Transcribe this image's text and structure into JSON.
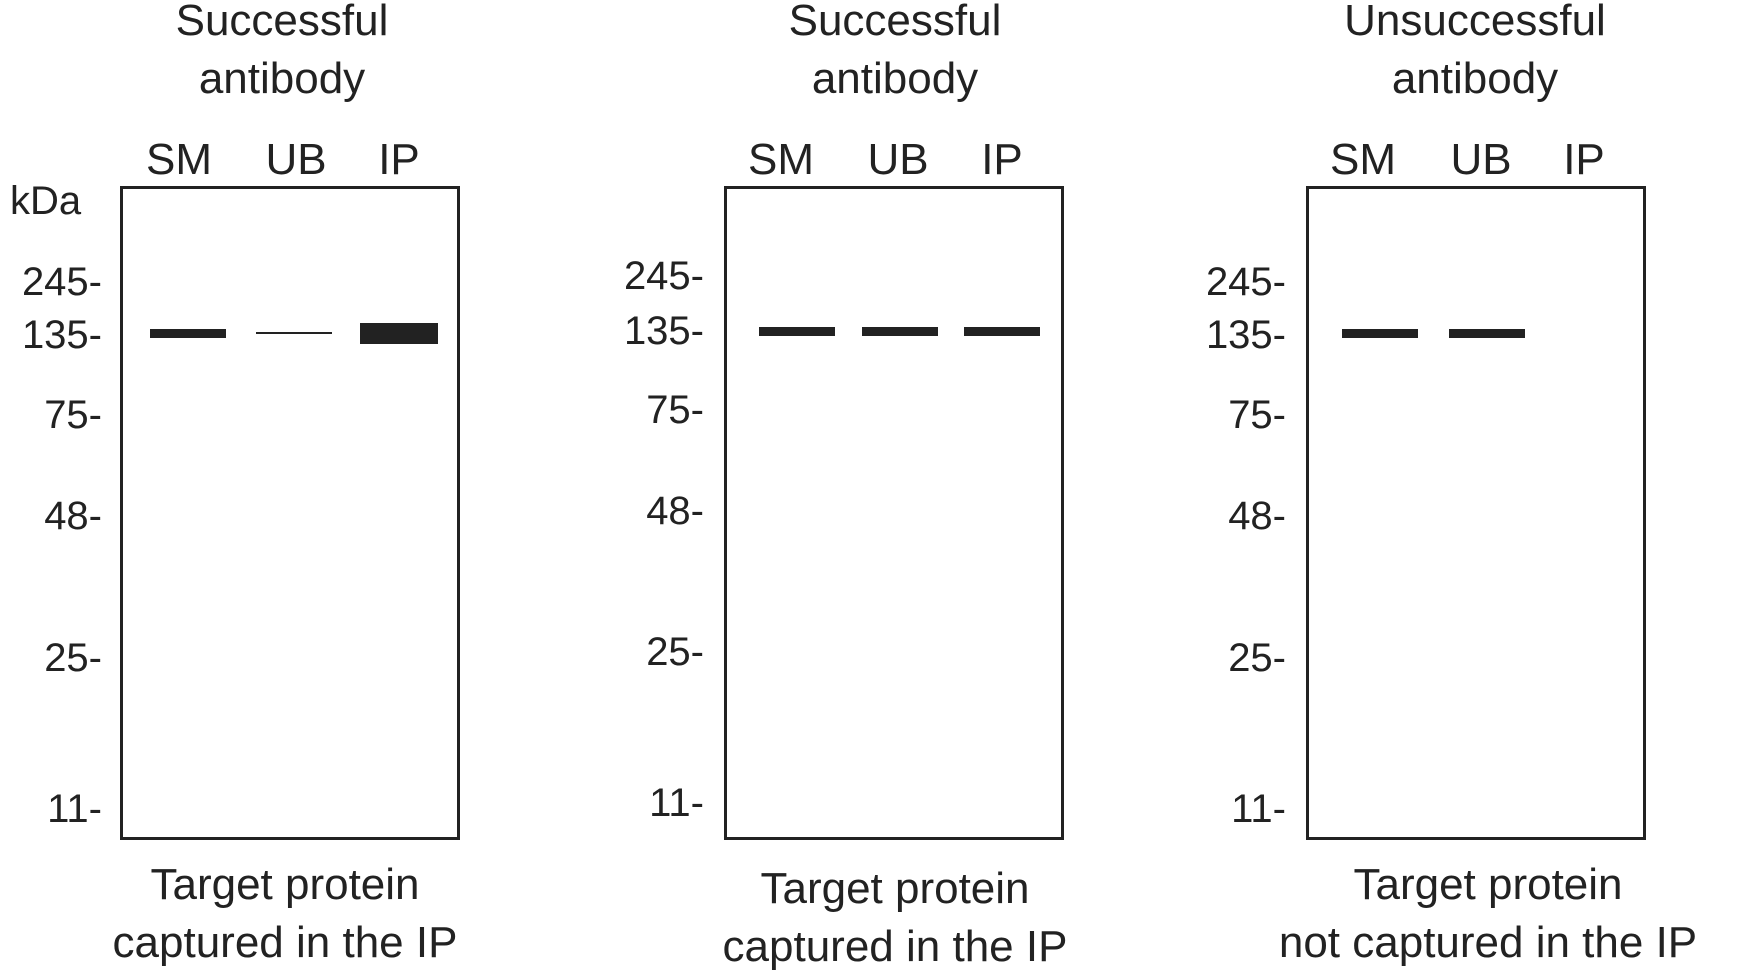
{
  "unit_label": "kDa",
  "lanes": [
    "SM",
    "UB",
    "IP"
  ],
  "panels": [
    {
      "title": "Successful\nantibody",
      "markers": [
        "245-",
        "135-",
        "75-",
        "48-",
        "25-",
        "11-"
      ],
      "caption": "Target protein\ncaptured in the IP",
      "bands": [
        {
          "lane": "SM",
          "marker": "135",
          "intensity": "medium"
        },
        {
          "lane": "UB",
          "marker": "135",
          "intensity": "faint"
        },
        {
          "lane": "IP",
          "marker": "135",
          "intensity": "strong"
        }
      ]
    },
    {
      "title": "Successful\nantibody",
      "markers": [
        "245-",
        "135-",
        "75-",
        "48-",
        "25-",
        "11-"
      ],
      "caption": "Target protein\ncaptured in the IP",
      "bands": [
        {
          "lane": "SM",
          "marker": "135",
          "intensity": "medium"
        },
        {
          "lane": "UB",
          "marker": "135",
          "intensity": "medium"
        },
        {
          "lane": "IP",
          "marker": "135",
          "intensity": "medium"
        }
      ]
    },
    {
      "title": "Unsuccessful\nantibody",
      "markers": [
        "245-",
        "135-",
        "75-",
        "48-",
        "25-",
        "11-"
      ],
      "caption": "Target protein\nnot captured in the IP",
      "bands": [
        {
          "lane": "SM",
          "marker": "135",
          "intensity": "medium"
        },
        {
          "lane": "UB",
          "marker": "135",
          "intensity": "medium"
        }
      ]
    }
  ],
  "colors": {
    "ink": "#222222",
    "background": "#ffffff"
  }
}
